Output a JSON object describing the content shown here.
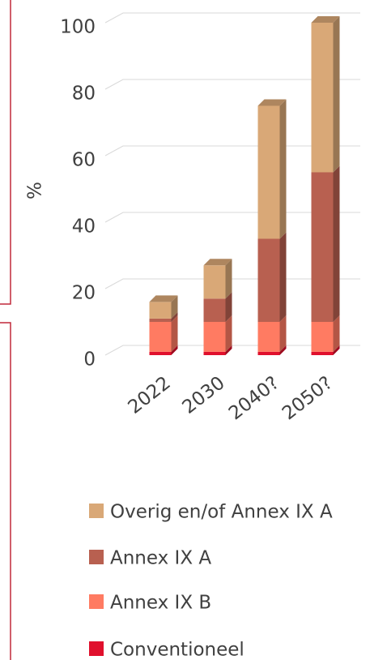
{
  "chart_data": {
    "type": "bar",
    "stacked": true,
    "y_label": "%",
    "categories": [
      "2022",
      "2030",
      "2040?",
      "2050?"
    ],
    "series": [
      {
        "name": "Conventioneel",
        "color": "#e0102d",
        "values": [
          1,
          1,
          1,
          1
        ]
      },
      {
        "name": "Annex IX B",
        "color": "#ff7b62",
        "values": [
          9,
          9,
          9,
          9
        ]
      },
      {
        "name": "Annex IX A",
        "color": "#b86050",
        "values": [
          1,
          7,
          25,
          45
        ]
      },
      {
        "name": "Overig en/of Annex IX A",
        "color": "#d9a877",
        "values": [
          5,
          10,
          40,
          45
        ]
      }
    ],
    "ylim": [
      0,
      100
    ],
    "yticks": [
      0,
      20,
      40,
      60,
      80,
      100
    ],
    "grid": true
  }
}
